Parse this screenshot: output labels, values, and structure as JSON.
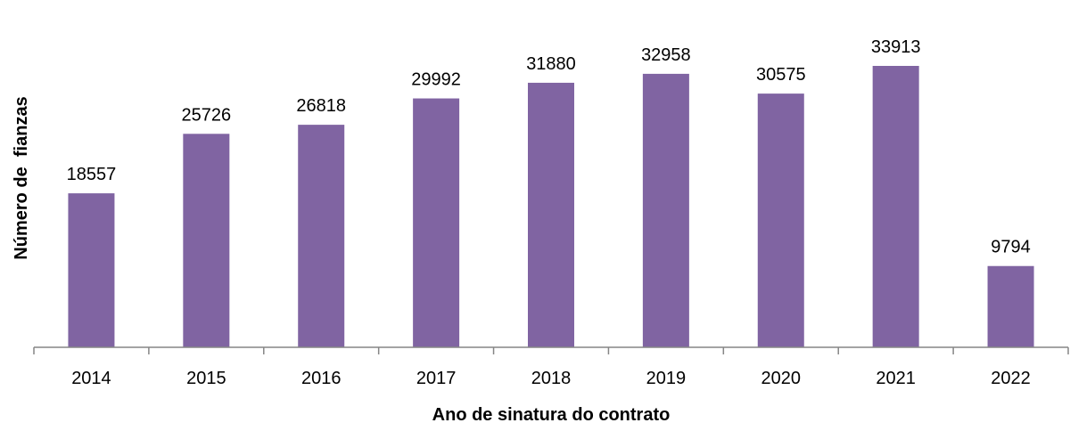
{
  "chart_data": {
    "type": "bar",
    "title": "",
    "xlabel": "Ano de sinatura do contrato",
    "ylabel": "Número de  fianzas",
    "categories": [
      "2014",
      "2015",
      "2016",
      "2017",
      "2018",
      "2019",
      "2020",
      "2021",
      "2022"
    ],
    "values": [
      18557,
      25726,
      26818,
      29992,
      31880,
      32958,
      30575,
      33913,
      9794
    ],
    "ylim": [
      0,
      35000
    ],
    "grid": false,
    "legend": "none",
    "bar_color": "#8064A2",
    "axis_color": "#868686"
  }
}
